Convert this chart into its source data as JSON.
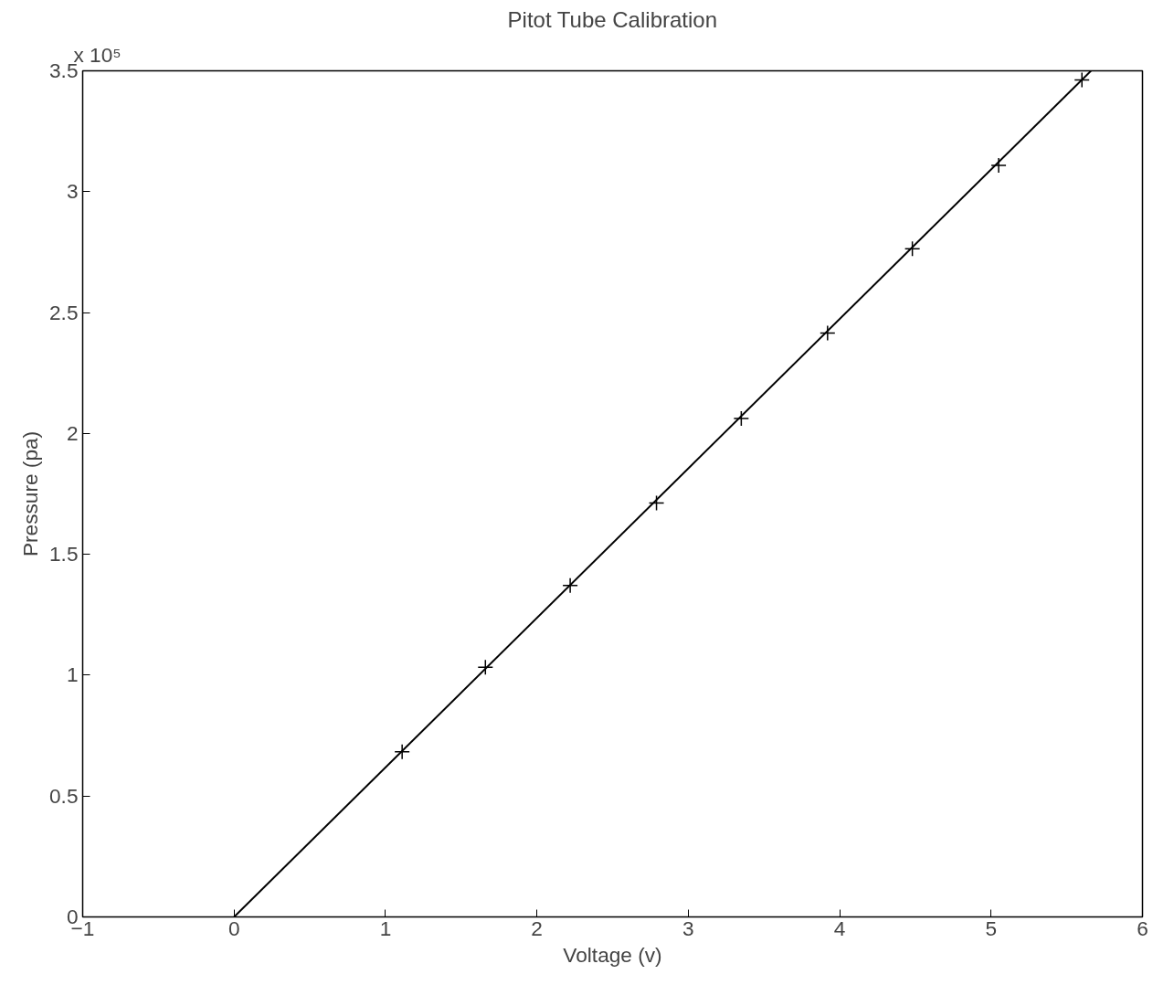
{
  "chart_data": {
    "type": "scatter",
    "title": "Pitot Tube Calibration",
    "xlabel": "Voltage (v)",
    "ylabel": "Pressure (pa)",
    "annotations": [
      "x 10⁵"
    ],
    "series": [
      {
        "color": "#000000",
        "marker": "cross",
        "x": [
          1.11,
          1.66,
          2.22,
          2.79,
          3.35,
          3.92,
          4.48,
          5.05,
          5.6
        ],
        "values": [
          0.683,
          1.033,
          1.371,
          1.712,
          2.062,
          2.415,
          2.764,
          3.109,
          3.462
        ]
      },
      {
        "type": "line",
        "color": "#000000",
        "marker": "none",
        "line_style": "solid",
        "x": [
          0,
          5.66
        ],
        "values": [
          0,
          3.5
        ]
      }
    ],
    "xlim": [
      -1,
      6
    ],
    "xticks": [
      -1,
      0,
      1,
      2,
      3,
      4,
      5,
      6
    ],
    "ylim": [
      0,
      3.5
    ],
    "yticks": [
      0,
      0.5,
      1,
      1.5,
      2,
      2.5,
      3,
      3.5
    ],
    "grid": false
  }
}
